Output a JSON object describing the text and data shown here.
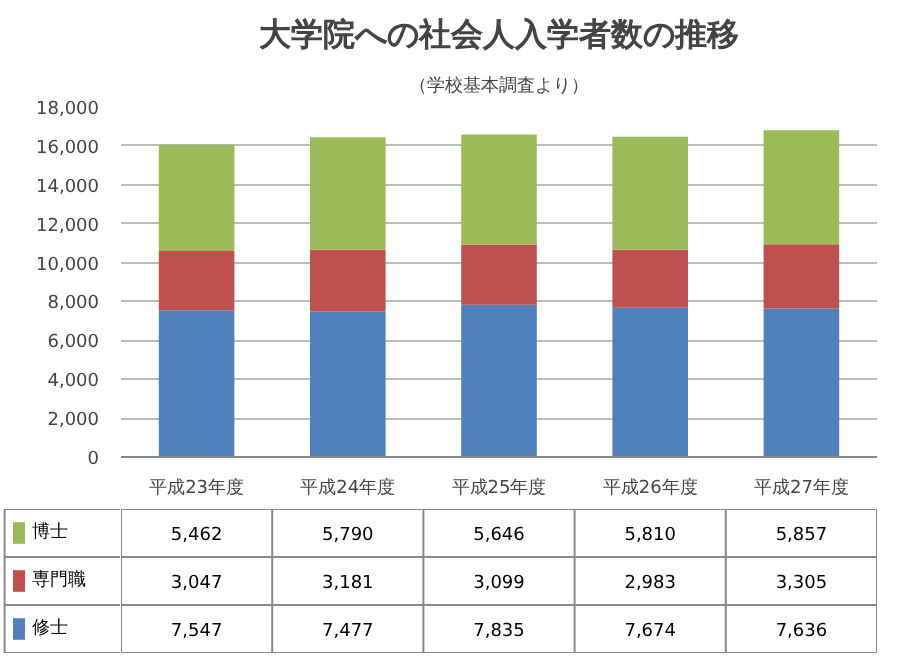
{
  "chart_data": {
    "type": "bar",
    "title": "大学院への社会人入学者数の推移",
    "subtitle": "（学校基本調査より）",
    "categories": [
      "平成23年度",
      "平成24年度",
      "平成25年度",
      "平成26年度",
      "平成27年度"
    ],
    "stacked": true,
    "grid": "y",
    "legend": "bottom",
    "ylim": [
      0,
      18000
    ],
    "yticks": [
      0,
      {
        "value": 2000,
        "label": "2,000"
      },
      {
        "value": 4000,
        "label": "4,000"
      },
      {
        "value": 6000,
        "label": "6,000"
      },
      {
        "value": 8000,
        "label": "8,000"
      },
      {
        "value": 10000,
        "label": "10,000"
      },
      {
        "value": 12000,
        "label": "12,000"
      },
      {
        "value": 14000,
        "label": "14,000"
      },
      {
        "value": 16000,
        "label": "16,000"
      },
      {
        "value": 18000,
        "label": "18,000"
      }
    ],
    "series": [
      {
        "name": "修士",
        "color": "#4f81bd",
        "values": [
          7547,
          7477,
          7835,
          7674,
          7636
        ],
        "value_labels": [
          "7,547",
          "7,477",
          "7,835",
          "7,674",
          "7,636"
        ]
      },
      {
        "name": "専門職",
        "color": "#c0504d",
        "values": [
          3047,
          3181,
          3099,
          2983,
          3305
        ],
        "value_labels": [
          "3,047",
          "3,181",
          "3,099",
          "2,983",
          "3,305"
        ]
      },
      {
        "name": "博士",
        "color": "#9bbb59",
        "values": [
          5462,
          5790,
          5646,
          5810,
          5857
        ],
        "value_labels": [
          "5,462",
          "5,790",
          "5,646",
          "5,810",
          "5,857"
        ]
      }
    ]
  }
}
